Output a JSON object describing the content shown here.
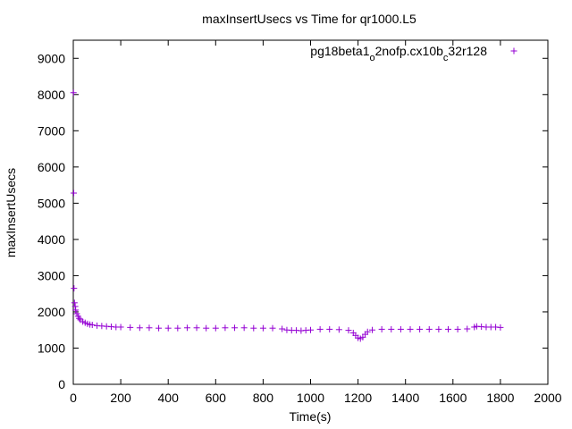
{
  "chart_data": {
    "type": "scatter",
    "title": "maxInsertUsecs vs Time for qr1000.L5",
    "xlabel": "Time(s)",
    "ylabel": "maxInsertUsecs",
    "xlim": [
      0,
      2000
    ],
    "ylim": [
      0,
      9500
    ],
    "xticks": [
      0,
      200,
      400,
      600,
      800,
      1000,
      1200,
      1400,
      1600,
      1800,
      2000
    ],
    "yticks": [
      0,
      1000,
      2000,
      3000,
      4000,
      5000,
      6000,
      7000,
      8000,
      9000
    ],
    "grid": false,
    "legend_position": "top-right",
    "marker": "plus",
    "series": [
      {
        "name_parts": [
          {
            "text": "pg18beta1",
            "sub": false
          },
          {
            "text": "o",
            "sub": true
          },
          {
            "text": "2nofp.cx10b",
            "sub": false
          },
          {
            "text": "c",
            "sub": true
          },
          {
            "text": "32r128",
            "sub": false
          }
        ],
        "color": "#9400d3",
        "x": [
          1,
          2,
          3,
          5,
          8,
          10,
          15,
          20,
          25,
          30,
          40,
          50,
          60,
          70,
          80,
          100,
          120,
          140,
          160,
          180,
          200,
          240,
          280,
          320,
          360,
          400,
          440,
          480,
          520,
          560,
          600,
          640,
          680,
          720,
          760,
          800,
          840,
          880,
          900,
          920,
          940,
          960,
          980,
          1000,
          1040,
          1080,
          1120,
          1160,
          1180,
          1190,
          1200,
          1210,
          1220,
          1230,
          1240,
          1260,
          1300,
          1340,
          1380,
          1420,
          1460,
          1500,
          1540,
          1580,
          1620,
          1660,
          1690,
          1700,
          1720,
          1740,
          1760,
          1780,
          1800
        ],
        "y": [
          8050,
          5280,
          2650,
          2250,
          2150,
          2050,
          1950,
          1880,
          1820,
          1780,
          1730,
          1700,
          1670,
          1650,
          1640,
          1620,
          1610,
          1600,
          1590,
          1580,
          1580,
          1570,
          1560,
          1560,
          1550,
          1550,
          1550,
          1560,
          1560,
          1550,
          1550,
          1560,
          1560,
          1560,
          1550,
          1550,
          1550,
          1530,
          1500,
          1490,
          1490,
          1480,
          1490,
          1500,
          1520,
          1520,
          1510,
          1490,
          1420,
          1350,
          1280,
          1260,
          1300,
          1380,
          1450,
          1500,
          1520,
          1520,
          1520,
          1520,
          1520,
          1520,
          1520,
          1520,
          1520,
          1530,
          1580,
          1600,
          1590,
          1580,
          1580,
          1580,
          1570
        ]
      }
    ]
  }
}
